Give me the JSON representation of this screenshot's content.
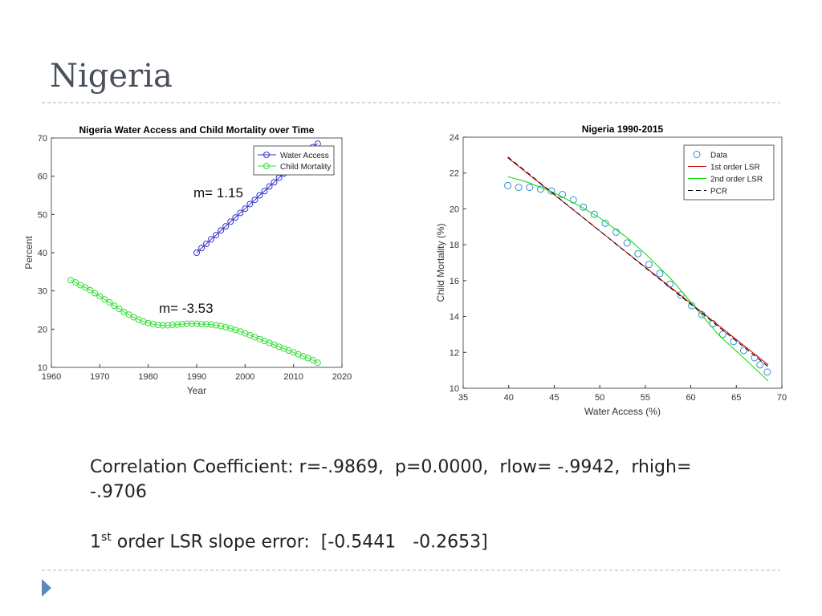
{
  "title": "Nigeria",
  "chart_data": [
    {
      "type": "line",
      "title": "Nigeria Water Access and Child Mortality over Time",
      "xlabel": "Year",
      "ylabel": "Percent",
      "xlim": [
        1960,
        2020
      ],
      "xticks": [
        1960,
        1970,
        1980,
        1990,
        2000,
        2010,
        2020
      ],
      "ylim": [
        10,
        70
      ],
      "yticks": [
        10,
        20,
        30,
        40,
        50,
        60,
        70
      ],
      "legend": "northeast",
      "series": [
        {
          "name": "Water Access",
          "color": "#3333cc",
          "style": "line-marker",
          "x": [
            1990,
            1991,
            1992,
            1993,
            1994,
            1995,
            1996,
            1997,
            1998,
            1999,
            2000,
            2001,
            2002,
            2003,
            2004,
            2005,
            2006,
            2007,
            2008,
            2009,
            2010,
            2011,
            2012,
            2013,
            2014,
            2015
          ],
          "values": [
            40.0,
            41.2,
            42.3,
            43.5,
            44.6,
            45.8,
            46.9,
            48.1,
            49.2,
            50.4,
            51.5,
            52.7,
            53.8,
            55.0,
            56.1,
            57.3,
            58.4,
            59.6,
            60.7,
            61.9,
            63.0,
            64.2,
            65.3,
            66.5,
            67.6,
            68.5
          ]
        },
        {
          "name": "Child Mortality",
          "color": "#33dd33",
          "style": "line-marker",
          "x": [
            1964,
            1965,
            1966,
            1967,
            1968,
            1969,
            1970,
            1971,
            1972,
            1973,
            1974,
            1975,
            1976,
            1977,
            1978,
            1979,
            1980,
            1981,
            1982,
            1983,
            1984,
            1985,
            1986,
            1987,
            1988,
            1989,
            1990,
            1991,
            1992,
            1993,
            1994,
            1995,
            1996,
            1997,
            1998,
            1999,
            2000,
            2001,
            2002,
            2003,
            2004,
            2005,
            2006,
            2007,
            2008,
            2009,
            2010,
            2011,
            2012,
            2013,
            2014,
            2015
          ],
          "values": [
            32.8,
            32.2,
            31.5,
            30.9,
            30.2,
            29.4,
            28.6,
            27.8,
            27.0,
            26.1,
            25.3,
            24.5,
            23.8,
            23.1,
            22.5,
            22.0,
            21.6,
            21.3,
            21.1,
            21.0,
            21.0,
            21.1,
            21.2,
            21.3,
            21.4,
            21.4,
            21.4,
            21.3,
            21.3,
            21.2,
            21.0,
            20.8,
            20.5,
            20.2,
            19.8,
            19.4,
            18.9,
            18.4,
            17.9,
            17.4,
            16.9,
            16.4,
            15.9,
            15.4,
            14.9,
            14.4,
            13.9,
            13.4,
            12.9,
            12.4,
            11.9,
            11.2
          ]
        }
      ],
      "annotations": [
        "m= 1.15",
        "m= -3.53"
      ]
    },
    {
      "type": "scatter",
      "title": "Nigeria 1990-2015",
      "xlabel": "Water Access (%)",
      "ylabel": "Child Mortality (%)",
      "xlim": [
        35,
        70
      ],
      "xticks": [
        35,
        40,
        45,
        50,
        55,
        60,
        65,
        70
      ],
      "ylim": [
        10,
        24
      ],
      "yticks": [
        10,
        12,
        14,
        16,
        18,
        20,
        22,
        24
      ],
      "legend": "northeast",
      "series": [
        {
          "name": "Data",
          "color": "#2f8fd8",
          "style": "marker",
          "x": [
            39.9,
            41.1,
            42.3,
            43.5,
            44.7,
            45.9,
            47.1,
            48.2,
            49.4,
            50.6,
            51.8,
            53.0,
            54.2,
            55.4,
            56.6,
            57.7,
            58.9,
            60.1,
            61.2,
            62.4,
            63.5,
            64.7,
            65.8,
            67.0,
            67.6,
            68.4
          ],
          "values": [
            21.3,
            21.2,
            21.2,
            21.1,
            21.0,
            20.8,
            20.5,
            20.1,
            19.7,
            19.2,
            18.7,
            18.1,
            17.5,
            16.9,
            16.4,
            15.8,
            15.2,
            14.6,
            14.1,
            13.6,
            13.0,
            12.6,
            12.1,
            11.7,
            11.3,
            10.9
          ]
        },
        {
          "name": "1st order LSR",
          "color": "#d00000",
          "style": "line",
          "x": [
            39.9,
            68.5
          ],
          "values": [
            22.85,
            11.3
          ]
        },
        {
          "name": "2nd order LSR",
          "color": "#00dd00",
          "style": "line",
          "x": [
            39.9,
            42,
            45,
            48,
            50,
            53,
            55,
            58,
            60,
            63,
            66,
            68.5
          ],
          "values": [
            21.8,
            21.5,
            20.9,
            20.1,
            19.5,
            18.4,
            17.5,
            16.0,
            14.8,
            13.0,
            11.6,
            10.4
          ]
        },
        {
          "name": "PCR",
          "color": "#000000",
          "style": "dashed",
          "x": [
            39.9,
            68.5
          ],
          "values": [
            22.9,
            11.2
          ]
        }
      ]
    }
  ],
  "notes": {
    "correlation": [
      "Correlation Coefficient: r=-.9869,  p=0.0000,  rlow= -.9942,  rhigh=",
      "-.9706"
    ],
    "slope_error": {
      "number": "1",
      "suffix": "st",
      "rest": " order LSR slope error:  [-0.5441   -0.2653]"
    }
  }
}
